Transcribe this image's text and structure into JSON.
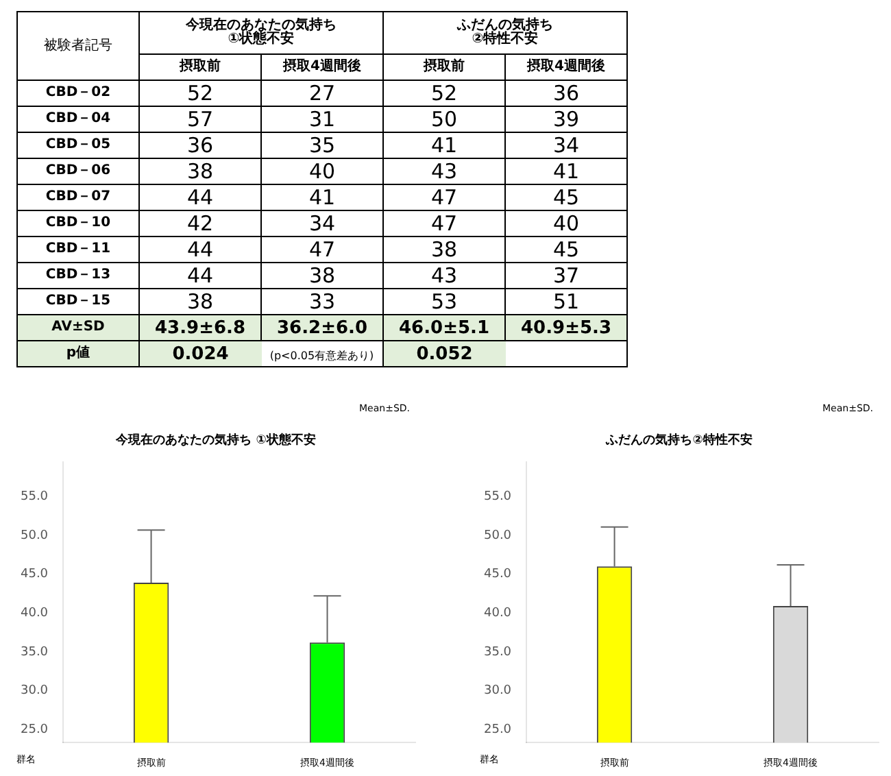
{
  "chart_data": [
    {
      "type": "other",
      "ylabel": "被験者記号",
      "annotations": [
        "今現在のあなたの気持ち\n①状態不安",
        "ふだんの気持ち\n②特性不安",
        "(p<0.05有意差あり)"
      ],
      "categories": [
        "摂取前",
        "摂取4週間後",
        "摂取前",
        "摂取4週間後"
      ],
      "y_categories": [
        "CBD－02",
        "CBD－04",
        "CBD－05",
        "CBD－06",
        "CBD－07",
        "CBD－10",
        "CBD－11",
        "CBD－13",
        "CBD－15",
        "AV±SD",
        "p値"
      ],
      "cell_labels": [
        [
          "52",
          "27",
          "52",
          "36"
        ],
        [
          "57",
          "31",
          "50",
          "39"
        ],
        [
          "36",
          "35",
          "41",
          "34"
        ],
        [
          "38",
          "40",
          "43",
          "41"
        ],
        [
          "44",
          "41",
          "47",
          "45"
        ],
        [
          "42",
          "34",
          "47",
          "40"
        ],
        [
          "44",
          "47",
          "38",
          "45"
        ],
        [
          "44",
          "38",
          "43",
          "37"
        ],
        [
          "38",
          "33",
          "53",
          "51"
        ],
        [
          "43.9±6.8",
          "36.2±6.0",
          "46.0±5.1",
          "40.9±5.3"
        ],
        [
          "0.024",
          null,
          "0.052",
          null
        ]
      ]
    },
    {
      "type": "bar",
      "title": "今現在のあなたの気持ち ①状態不安",
      "xlabel": "群名",
      "annotations": [
        "Mean±SD."
      ],
      "categories": [
        "摂取前",
        "摂取4週間後"
      ],
      "values": [
        43.9,
        36.2
      ],
      "colors": [
        "#ffff00",
        "#00ff00"
      ],
      "errors": [
        [
          43.9,
          50.7
        ],
        [
          36.2,
          42.2
        ]
      ],
      "ylim": [
        23.3,
        59.5
      ],
      "yticks": [
        {
          "value": 25,
          "label": "25.0"
        },
        {
          "value": 30,
          "label": "30.0"
        },
        {
          "value": 35,
          "label": "35.0"
        },
        {
          "value": 40,
          "label": "40.0"
        },
        {
          "value": 45,
          "label": "45.0"
        },
        {
          "value": 50,
          "label": "50.0"
        },
        {
          "value": 55,
          "label": "55.0"
        }
      ],
      "grid": false,
      "legend": false
    },
    {
      "type": "bar",
      "title": "ふだんの気持ち②特性不安",
      "xlabel": "群名",
      "annotations": [
        "Mean±SD."
      ],
      "categories": [
        "摂取前",
        "摂取4週間後"
      ],
      "values": [
        46.0,
        40.9
      ],
      "colors": [
        "#ffff00",
        "#d9d9d9"
      ],
      "errors": [
        [
          46.0,
          51.1
        ],
        [
          40.9,
          46.2
        ]
      ],
      "ylim": [
        23.3,
        59.5
      ],
      "yticks": [
        {
          "value": 25,
          "label": "25.0"
        },
        {
          "value": 30,
          "label": "30.0"
        },
        {
          "value": 35,
          "label": "35.0"
        },
        {
          "value": 40,
          "label": "40.0"
        },
        {
          "value": 45,
          "label": "45.0"
        },
        {
          "value": 50,
          "label": "50.0"
        },
        {
          "value": 55,
          "label": "55.0"
        }
      ],
      "grid": false,
      "legend": false
    }
  ]
}
